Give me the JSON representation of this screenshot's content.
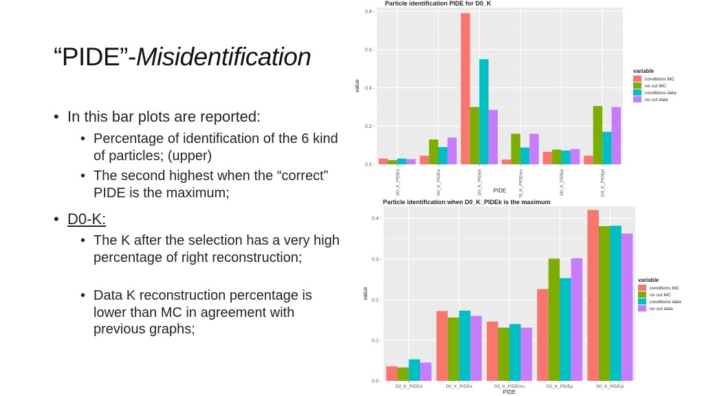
{
  "slide": {
    "title_prefix": "“PIDE”-",
    "title_italic": "Misidentification",
    "bullet1": "In this bar plots are reported:",
    "sub1": "Percentage of identification of the 6 kind of particles; (upper)",
    "sub2": "The second highest when the “correct” PIDE is the maximum;",
    "bullet2": "D0-K:",
    "sub3": "The K after the selection has a very high percentage of right reconstruction;",
    "sub4": "Data K reconstruction percentage is lower than MC in agreement with previous graphs;"
  },
  "colors": {
    "panel": "#ebebeb",
    "grid": "#ffffff",
    "series": [
      "#f8766d",
      "#7cae00",
      "#00bfc4",
      "#c77cff"
    ]
  },
  "chart_data": [
    {
      "type": "bar",
      "title": "Particle identification PIDE for D0_K",
      "xlabel": "PIDE",
      "ylabel": "value",
      "legend_title": "variable",
      "legend_position": "right",
      "grid": true,
      "ylim": [
        0,
        0.82
      ],
      "yticks": [
        0.0,
        0.2,
        0.4,
        0.6,
        0.8
      ],
      "ytick_labels": [
        "0.0 -",
        "0.2 -",
        "0.4 -",
        "0.6 -",
        "0.8 -"
      ],
      "categories": [
        "D0_K_PIDEd",
        "D0_K_PIDEe",
        "D0_K_PIDEk",
        "D0_K_PIDEmu",
        "D0_K_PIDEp",
        "D0_K_PIDEpi"
      ],
      "series": [
        {
          "name": "conditions MC",
          "values": [
            0.03,
            0.045,
            0.79,
            0.025,
            0.065,
            0.045
          ]
        },
        {
          "name": "no cut MC",
          "values": [
            0.022,
            0.13,
            0.3,
            0.16,
            0.077,
            0.305
          ]
        },
        {
          "name": "conditions data",
          "values": [
            0.03,
            0.09,
            0.55,
            0.088,
            0.072,
            0.17
          ]
        },
        {
          "name": "no cut data",
          "values": [
            0.027,
            0.14,
            0.285,
            0.16,
            0.08,
            0.3
          ]
        }
      ]
    },
    {
      "type": "bar",
      "title": "Particle identification when D0_K_PIDEk is the maximum",
      "xlabel": "PIDE",
      "ylabel": "value",
      "legend_title": "variable",
      "legend_position": "right",
      "grid": true,
      "ylim": [
        0,
        0.43
      ],
      "yticks": [
        0.0,
        0.1,
        0.2,
        0.3,
        0.4
      ],
      "ytick_labels": [
        "0.0 -",
        "0.1 -",
        "0.2 -",
        "0.3 -",
        "0.4 -"
      ],
      "categories": [
        "D0_K_PIDEd",
        "D0_K_PIDEe",
        "D0_K_PIDEmu",
        "D0_K_PIDEp",
        "D0_K_PIDEpi"
      ],
      "series": [
        {
          "name": "conditions MC",
          "values": [
            0.036,
            0.172,
            0.146,
            0.226,
            0.421
          ]
        },
        {
          "name": "no cut MC",
          "values": [
            0.033,
            0.156,
            0.131,
            0.301,
            0.381
          ]
        },
        {
          "name": "conditions data",
          "values": [
            0.053,
            0.173,
            0.14,
            0.253,
            0.382
          ]
        },
        {
          "name": "no cut data",
          "values": [
            0.045,
            0.16,
            0.131,
            0.302,
            0.363
          ]
        }
      ]
    }
  ]
}
